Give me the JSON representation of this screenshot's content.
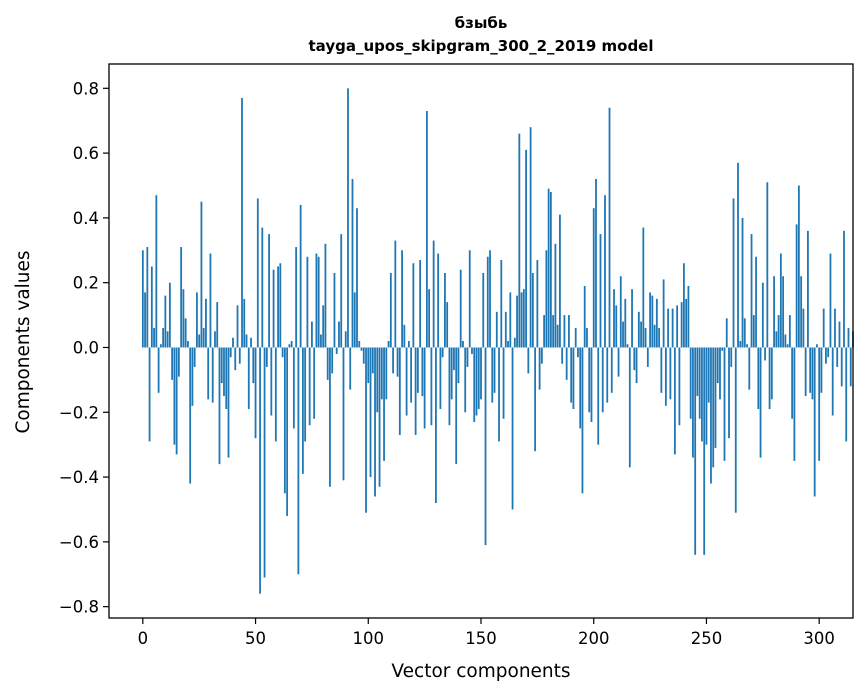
{
  "chart_data": {
    "type": "bar",
    "title": "бзыбь",
    "subtitle": "tayga_upos_skipgram_300_2_2019 model",
    "xlabel": "Vector components",
    "ylabel": "Components values",
    "xlim": [
      -15,
      315
    ],
    "ylim": [
      -0.835,
      0.875
    ],
    "xticks": [
      0,
      50,
      100,
      150,
      200,
      250,
      300
    ],
    "xtick_labels": [
      "0",
      "50",
      "100",
      "150",
      "200",
      "250",
      "300"
    ],
    "yticks": [
      -0.8,
      -0.6,
      -0.4,
      -0.2,
      0.0,
      0.2,
      0.4,
      0.6,
      0.8
    ],
    "ytick_labels": [
      "−0.8",
      "−0.6",
      "−0.4",
      "−0.2",
      "0.0",
      "0.2",
      "0.4",
      "0.6",
      "0.8"
    ],
    "grid": false,
    "bar_color": "#1f77b4",
    "x_start": 0,
    "values": [
      0.3,
      0.17,
      0.31,
      -0.29,
      0.25,
      0.06,
      0.47,
      -0.14,
      0.01,
      0.06,
      0.16,
      0.05,
      0.2,
      -0.1,
      -0.3,
      -0.33,
      -0.09,
      0.31,
      0.18,
      0.09,
      0.02,
      -0.42,
      -0.18,
      -0.06,
      0.17,
      0.04,
      0.45,
      0.06,
      0.15,
      -0.16,
      0.29,
      -0.17,
      0.05,
      0.14,
      -0.36,
      -0.11,
      -0.15,
      -0.19,
      -0.34,
      -0.03,
      0.03,
      -0.07,
      0.13,
      -0.05,
      0.77,
      0.15,
      0.04,
      -0.19,
      0.03,
      -0.11,
      -0.28,
      0.46,
      -0.76,
      0.37,
      -0.71,
      -0.06,
      0.35,
      -0.21,
      0.24,
      -0.29,
      0.25,
      0.26,
      -0.03,
      -0.45,
      -0.52,
      0.01,
      0.02,
      -0.25,
      0.31,
      -0.7,
      0.44,
      -0.39,
      -0.29,
      0.28,
      -0.24,
      0.08,
      -0.22,
      0.29,
      0.28,
      0.04,
      0.13,
      0.32,
      -0.1,
      -0.43,
      -0.08,
      0.23,
      -0.02,
      0.08,
      0.35,
      -0.41,
      0.05,
      0.8,
      -0.13,
      0.52,
      0.17,
      0.43,
      0.02,
      -0.01,
      -0.05,
      -0.51,
      -0.11,
      -0.4,
      -0.08,
      -0.46,
      -0.2,
      -0.43,
      -0.16,
      -0.35,
      -0.16,
      0.02,
      0.23,
      -0.08,
      0.33,
      -0.09,
      -0.27,
      0.3,
      0.07,
      -0.21,
      0.02,
      -0.17,
      0.26,
      -0.27,
      -0.14,
      0.27,
      -0.15,
      -0.25,
      0.73,
      0.18,
      -0.24,
      0.33,
      -0.48,
      0.29,
      -0.19,
      -0.03,
      0.23,
      0.14,
      -0.24,
      -0.16,
      -0.07,
      -0.36,
      -0.11,
      0.24,
      0.02,
      -0.2,
      -0.06,
      0.3,
      -0.02,
      -0.23,
      -0.21,
      -0.19,
      -0.16,
      0.23,
      -0.61,
      0.28,
      0.3,
      -0.17,
      -0.14,
      0.11,
      -0.29,
      0.27,
      -0.22,
      0.11,
      0.02,
      0.17,
      -0.5,
      0.03,
      0.16,
      0.66,
      0.17,
      0.18,
      0.61,
      -0.08,
      0.68,
      0.23,
      -0.32,
      0.27,
      -0.13,
      -0.05,
      0.1,
      0.3,
      0.49,
      0.48,
      0.1,
      0.32,
      0.07,
      0.41,
      -0.05,
      0.1,
      -0.1,
      0.1,
      -0.17,
      -0.19,
      0.06,
      -0.03,
      -0.25,
      -0.45,
      0.19,
      0.06,
      -0.2,
      -0.23,
      0.43,
      0.52,
      -0.3,
      0.35,
      -0.2,
      0.47,
      -0.17,
      0.74,
      -0.14,
      0.18,
      0.13,
      -0.09,
      0.22,
      0.08,
      0.15,
      0.01,
      -0.37,
      0.18,
      -0.07,
      -0.11,
      0.11,
      0.08,
      0.37,
      0.06,
      -0.06,
      0.17,
      0.16,
      0.07,
      0.15,
      0.06,
      -0.14,
      0.21,
      -0.18,
      0.12,
      -0.16,
      0.12,
      -0.33,
      0.13,
      -0.24,
      0.14,
      0.26,
      0.15,
      0.19,
      -0.22,
      -0.34,
      -0.64,
      -0.15,
      -0.22,
      -0.29,
      -0.64,
      -0.3,
      -0.17,
      -0.42,
      -0.37,
      -0.31,
      -0.11,
      -0.16,
      -0.01,
      -0.35,
      0.09,
      -0.28,
      -0.06,
      0.46,
      -0.51,
      0.57,
      0.02,
      0.4,
      0.09,
      0.01,
      -0.13,
      0.35,
      0.1,
      0.28,
      -0.19,
      -0.34,
      0.2,
      -0.04,
      0.51,
      -0.19,
      -0.16,
      0.22,
      0.05,
      0.1,
      0.29,
      0.22,
      0.04,
      0.01,
      0.1,
      -0.22,
      -0.35,
      0.38,
      0.5,
      0.22,
      0.12,
      -0.15,
      0.36,
      -0.14,
      -0.16,
      -0.46,
      0.01,
      -0.35,
      -0.14,
      0.12,
      -0.05,
      -0.03,
      0.29,
      -0.21,
      0.12,
      -0.06,
      0.08,
      -0.12,
      0.36,
      -0.29,
      0.06,
      -0.12,
      0.05
    ]
  }
}
